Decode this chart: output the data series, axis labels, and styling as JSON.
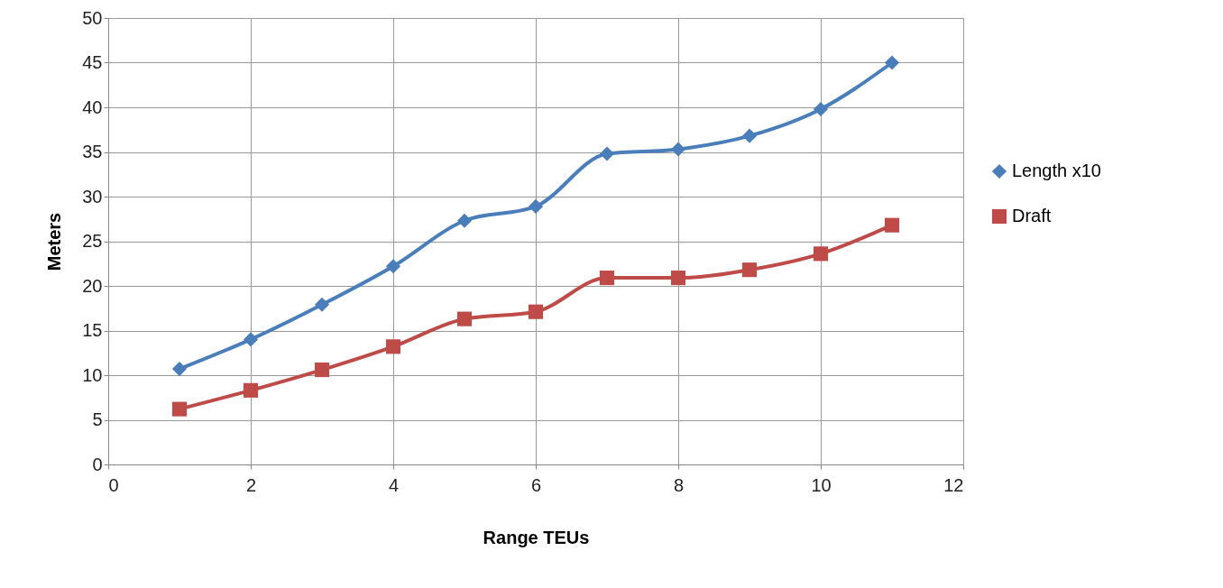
{
  "chart_data": {
    "type": "line",
    "xlabel": "Range TEUs",
    "ylabel": "Meters",
    "x": [
      1,
      2,
      3,
      4,
      5,
      6,
      7,
      8,
      9,
      10,
      11
    ],
    "series": [
      {
        "name": "Length x10",
        "color": "#4a7ebb",
        "marker": "diamond",
        "values": [
          10.7,
          14.0,
          17.9,
          22.2,
          27.3,
          28.9,
          34.8,
          35.3,
          36.8,
          39.8,
          45.0
        ]
      },
      {
        "name": "Draft",
        "color": "#be4b48",
        "marker": "square",
        "values": [
          6.2,
          8.3,
          10.6,
          13.2,
          16.3,
          17.1,
          20.9,
          20.9,
          21.8,
          23.6,
          26.8
        ]
      }
    ],
    "xlim": [
      0,
      12
    ],
    "xticks": [
      0,
      2,
      4,
      6,
      8,
      10,
      12
    ],
    "ylim": [
      0,
      50
    ],
    "yticks": [
      0,
      5,
      10,
      15,
      20,
      25,
      30,
      35,
      40,
      45,
      50
    ],
    "grid": true,
    "legend": "right",
    "line_style": "solid"
  }
}
